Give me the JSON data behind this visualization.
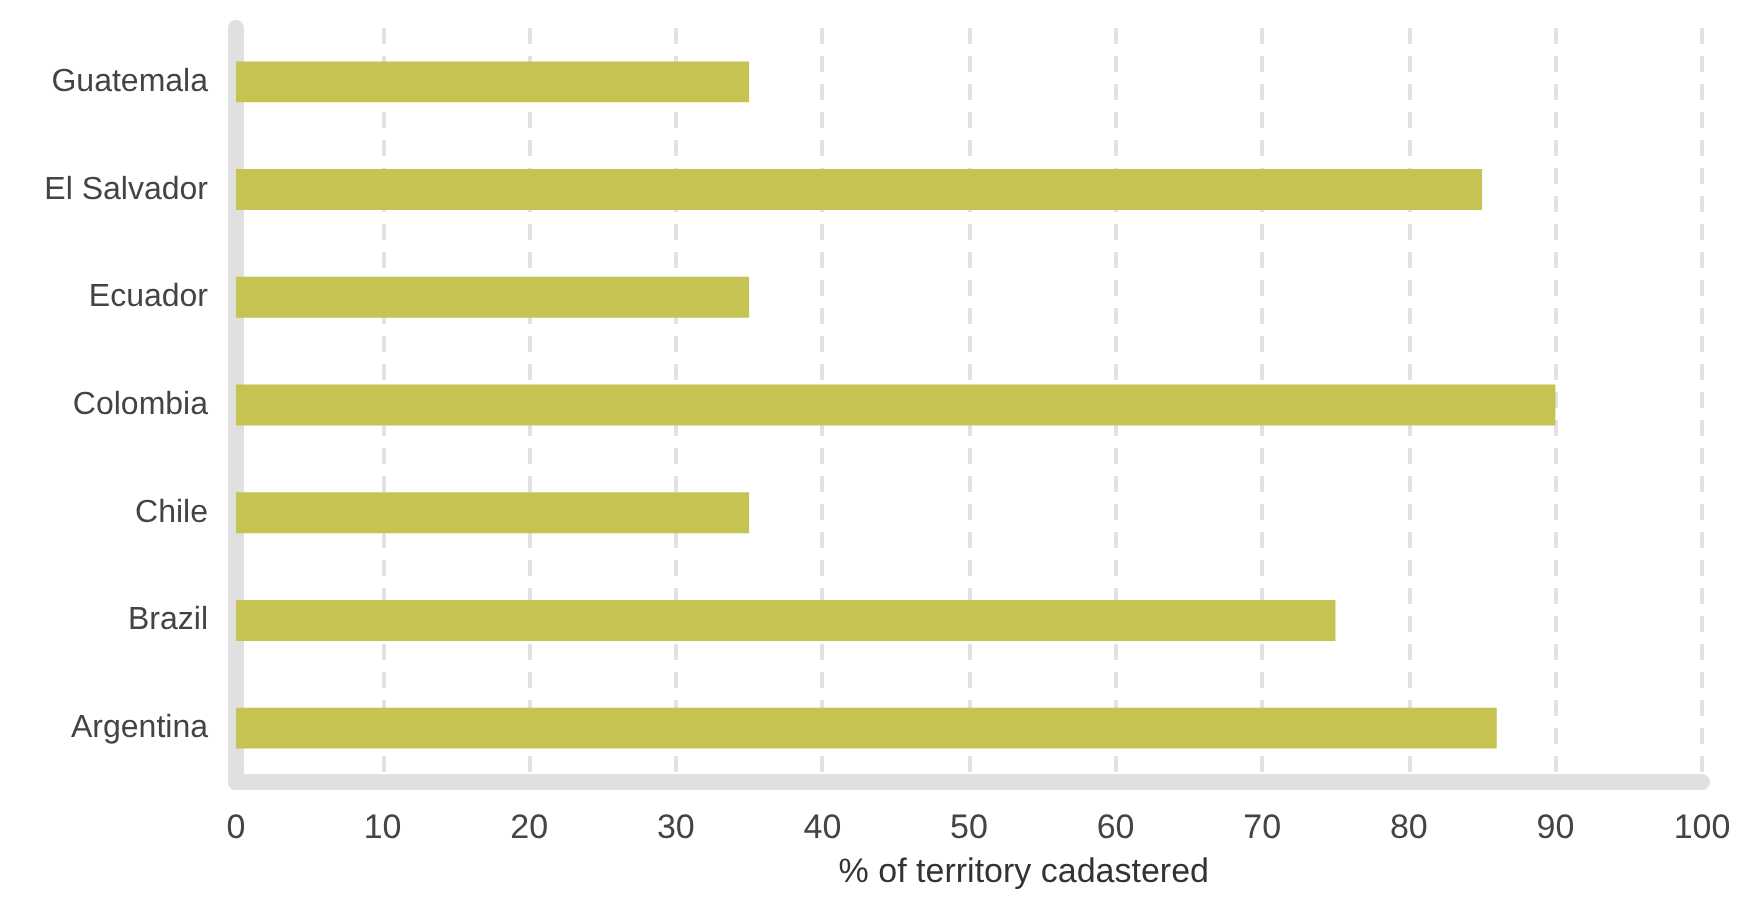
{
  "chart_data": {
    "type": "bar",
    "orientation": "horizontal",
    "xlabel": "% of territory cadastered",
    "categories": [
      "Guatemala",
      "El Salvador",
      "Ecuador",
      "Colombia",
      "Chile",
      "Brazil",
      "Argentina"
    ],
    "values": [
      35,
      85,
      35,
      90,
      35,
      75,
      86
    ],
    "color": "#c5c452",
    "xlim": [
      0,
      100
    ],
    "xticks": [
      0,
      10,
      20,
      30,
      40,
      50,
      60,
      70,
      80,
      90,
      100
    ],
    "grid": "x"
  }
}
